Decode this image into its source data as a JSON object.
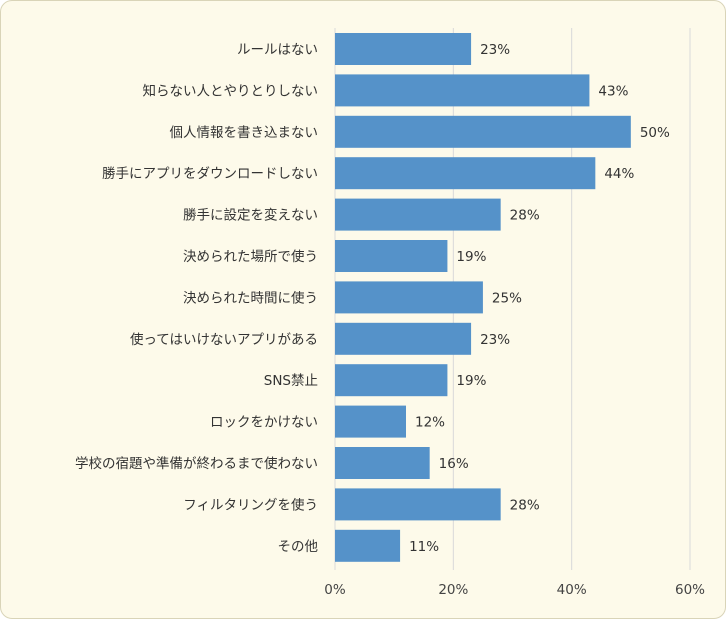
{
  "chart_data": {
    "type": "bar",
    "orientation": "horizontal",
    "categories": [
      "ルールはない",
      "知らない人とやりとりしない",
      "個人情報を書き込まない",
      "勝手にアプリをダウンロードしない",
      "勝手に設定を変えない",
      "決められた場所で使う",
      "決められた時間に使う",
      "使ってはいけないアプリがある",
      "SNS禁止",
      "ロックをかけない",
      "学校の宿題や準備が終わるまで使わない",
      "フィルタリングを使う",
      "その他"
    ],
    "values": [
      23,
      43,
      50,
      44,
      28,
      19,
      25,
      23,
      19,
      12,
      16,
      28,
      11
    ],
    "value_labels": [
      "23%",
      "43%",
      "50%",
      "44%",
      "28%",
      "19%",
      "25%",
      "23%",
      "19%",
      "12%",
      "16%",
      "28%",
      "11%"
    ],
    "xlim": [
      0,
      60
    ],
    "xticks": [
      0,
      20,
      40,
      60
    ],
    "xtick_labels": [
      "0%",
      "20%",
      "40%",
      "60%"
    ],
    "grid": true,
    "bar_color": "#5592c9",
    "grid_color": "#d9d9d9",
    "background_color": "#fdfaea"
  }
}
